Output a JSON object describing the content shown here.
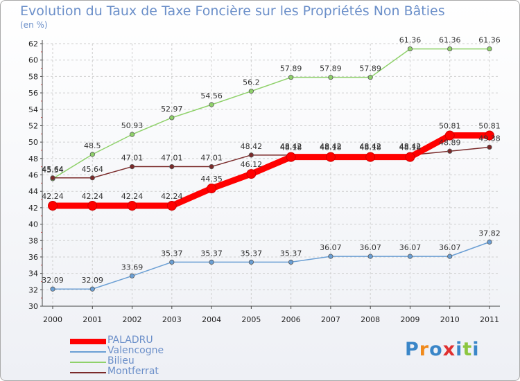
{
  "chart_data": {
    "type": "line",
    "title": "Evolution du Taux de Taxe Foncière sur les Propriétés Non Bâties",
    "ylabel": "(en %)",
    "xlabel": "",
    "categories": [
      "2000",
      "2001",
      "2002",
      "2003",
      "2004",
      "2005",
      "2006",
      "2007",
      "2008",
      "2009",
      "2010",
      "2011"
    ],
    "ylim": [
      30,
      62
    ],
    "yticks": [
      30,
      32,
      34,
      36,
      38,
      40,
      42,
      44,
      46,
      48,
      50,
      52,
      54,
      56,
      58,
      60,
      62
    ],
    "grid": true,
    "legend_position": "bottom-left",
    "series": [
      {
        "name": "PALADRU",
        "color": "#ff0000",
        "values": [
          42.24,
          42.24,
          42.24,
          42.24,
          44.35,
          46.12,
          48.18,
          48.18,
          48.18,
          48.18,
          50.81,
          50.81
        ]
      },
      {
        "name": "Valencogne",
        "color": "#6b9fd4",
        "values": [
          32.09,
          32.09,
          33.69,
          35.37,
          35.37,
          35.37,
          35.37,
          36.07,
          36.07,
          36.07,
          36.07,
          37.82
        ]
      },
      {
        "name": "Bilieu",
        "color": "#8fd16a",
        "values": [
          45.54,
          48.5,
          50.93,
          52.97,
          54.56,
          56.2,
          57.89,
          57.89,
          57.89,
          61.36,
          61.36,
          61.36
        ]
      },
      {
        "name": "Montferrat",
        "color": "#7a2a2a",
        "values": [
          45.64,
          45.64,
          47.01,
          47.01,
          47.01,
          48.42,
          48.42,
          48.42,
          48.42,
          48.42,
          48.89,
          49.38
        ]
      }
    ]
  },
  "logo": {
    "text": "Proxiti",
    "letter_colors": [
      "#3a86c8",
      "#f08a1c",
      "#3a86c8",
      "#e03030",
      "#3a86c8",
      "#8cc63f",
      "#3a86c8"
    ]
  }
}
